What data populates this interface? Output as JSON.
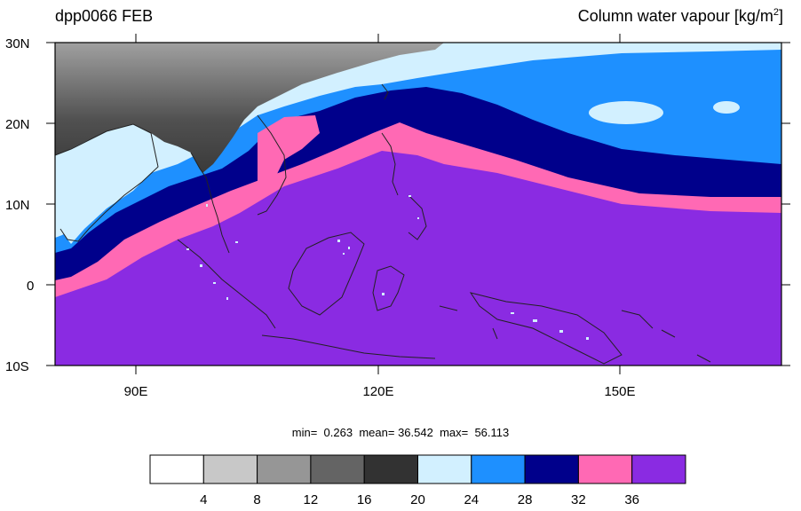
{
  "header": {
    "left_title": "dpp0066 FEB",
    "right_title_main": "Column water vapour [kg/m",
    "right_title_sup": "2",
    "right_title_end": "]"
  },
  "map": {
    "lat_labels": [
      "30N",
      "20N",
      "10N",
      "0",
      "10S"
    ],
    "lon_labels": [
      "90E",
      "120E",
      "150E"
    ],
    "lat_range": [
      -10,
      30
    ],
    "lon_range": [
      80,
      170
    ],
    "colors": {
      "c0": "#ffffff",
      "c4": "#c8c8c8",
      "c8": "#969696",
      "c12": "#646464",
      "c16": "#323232",
      "c20": "#d2f0ff",
      "c24": "#1e90ff",
      "c28": "#00008b",
      "c32": "#ff69b4",
      "c36": "#8a2be2"
    }
  },
  "stats": {
    "min_label": "min=",
    "min_value": "0.263",
    "mean_label": "mean=",
    "mean_value": "36.542",
    "max_label": "max=",
    "max_value": "56.113"
  },
  "colorbar": {
    "colors": [
      "#ffffff",
      "#c8c8c8",
      "#969696",
      "#646464",
      "#323232",
      "#d2f0ff",
      "#1e90ff",
      "#00008b",
      "#ff69b4",
      "#8a2be2"
    ],
    "labels": [
      "4",
      "8",
      "12",
      "16",
      "20",
      "24",
      "28",
      "32",
      "36"
    ]
  }
}
